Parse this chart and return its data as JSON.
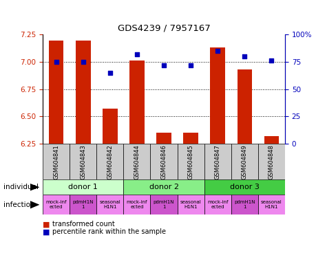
{
  "title": "GDS4239 / 7957167",
  "samples": [
    "GSM604841",
    "GSM604843",
    "GSM604842",
    "GSM604844",
    "GSM604846",
    "GSM604845",
    "GSM604847",
    "GSM604849",
    "GSM604848"
  ],
  "red_values": [
    7.19,
    7.19,
    6.57,
    7.01,
    6.35,
    6.35,
    7.13,
    6.93,
    6.32
  ],
  "blue_values": [
    75,
    75,
    65,
    82,
    72,
    72,
    85,
    80,
    76
  ],
  "ylim_left": [
    6.25,
    7.25
  ],
  "ylim_right": [
    0,
    100
  ],
  "yticks_left": [
    6.25,
    6.5,
    6.75,
    7.0,
    7.25
  ],
  "yticks_right": [
    0,
    25,
    50,
    75,
    100
  ],
  "ytick_labels_right": [
    "0",
    "25",
    "50",
    "75",
    "100%"
  ],
  "donors": [
    {
      "label": "donor 1",
      "start": 0,
      "end": 3,
      "color": "#ccffcc"
    },
    {
      "label": "donor 2",
      "start": 3,
      "end": 6,
      "color": "#88ee88"
    },
    {
      "label": "donor 3",
      "start": 6,
      "end": 9,
      "color": "#44cc44"
    }
  ],
  "infections": [
    {
      "label": "mock-inf\nected",
      "color": "#ee88ee"
    },
    {
      "label": "pdmH1N\n1",
      "color": "#cc55cc"
    },
    {
      "label": "seasonal\nH1N1",
      "color": "#ee88ee"
    },
    {
      "label": "mock-inf\nected",
      "color": "#ee88ee"
    },
    {
      "label": "pdmH1N\n1",
      "color": "#cc55cc"
    },
    {
      "label": "seasonal\nH1N1",
      "color": "#ee88ee"
    },
    {
      "label": "mock-inf\nected",
      "color": "#ee88ee"
    },
    {
      "label": "pdmH1N\n1",
      "color": "#cc55cc"
    },
    {
      "label": "seasonal\nH1N1",
      "color": "#ee88ee"
    }
  ],
  "bar_color": "#cc2200",
  "dot_color": "#0000bb",
  "left_axis_color": "#cc2200",
  "right_axis_color": "#0000bb",
  "sample_bg_color": "#cccccc",
  "legend_square_red": "#cc2200",
  "legend_square_blue": "#0000bb"
}
